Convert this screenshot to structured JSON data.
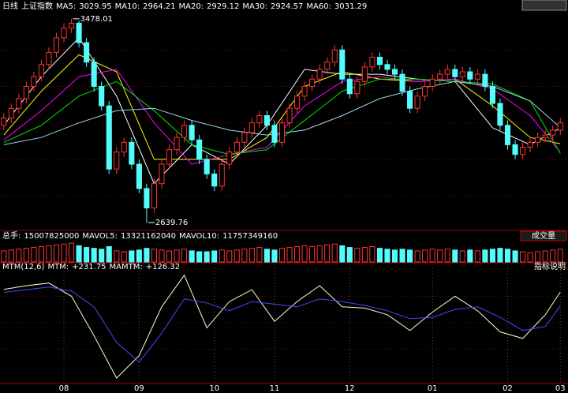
{
  "chart_data": [
    {
      "type": "candlestick",
      "period": "日线",
      "title": "上证指数",
      "open": [
        3040,
        3070,
        3110,
        3150,
        3200,
        3240,
        3290,
        3340,
        3400,
        3440,
        3460,
        3380,
        3300,
        3200,
        3120,
        2860,
        2930,
        2970,
        2880,
        2780,
        2700,
        2800,
        2880,
        2940,
        2990,
        3040,
        2980,
        2900,
        2840,
        2790,
        2880,
        2930,
        2970,
        3010,
        3050,
        3080,
        3040,
        2970,
        3050,
        3110,
        3160,
        3200,
        3230,
        3270,
        3300,
        3350,
        3230,
        3170,
        3220,
        3280,
        3320,
        3290,
        3270,
        3250,
        3180,
        3110,
        3160,
        3200,
        3230,
        3250,
        3270,
        3240,
        3260,
        3230,
        3250,
        3200,
        3130,
        3040,
        2960,
        2920,
        2950,
        2970,
        2990,
        3000,
        3020
      ],
      "high": [
        3090,
        3130,
        3170,
        3220,
        3260,
        3310,
        3360,
        3420,
        3460,
        3478.01,
        3470,
        3400,
        3320,
        3220,
        3140,
        2950,
        2990,
        2990,
        2900,
        2800,
        2820,
        2900,
        2960,
        3010,
        3060,
        3060,
        3000,
        2920,
        2860,
        2900,
        2950,
        2990,
        3030,
        3070,
        3100,
        3100,
        3060,
        3070,
        3130,
        3180,
        3220,
        3250,
        3290,
        3320,
        3370,
        3370,
        3250,
        3240,
        3300,
        3340,
        3340,
        3310,
        3290,
        3270,
        3200,
        3180,
        3220,
        3250,
        3270,
        3290,
        3290,
        3280,
        3280,
        3270,
        3270,
        3220,
        3150,
        3060,
        2980,
        2970,
        2990,
        3010,
        3020,
        3040,
        3070
      ],
      "low": [
        3020,
        3050,
        3090,
        3130,
        3180,
        3220,
        3270,
        3320,
        3380,
        3420,
        3360,
        3280,
        3180,
        3100,
        2840,
        2840,
        2910,
        2860,
        2760,
        2639.76,
        2680,
        2780,
        2860,
        2920,
        2970,
        2960,
        2880,
        2820,
        2770,
        2770,
        2860,
        2910,
        2950,
        2990,
        3030,
        3020,
        2950,
        2950,
        3030,
        3090,
        3140,
        3180,
        3210,
        3250,
        3280,
        3210,
        3150,
        3150,
        3200,
        3260,
        3270,
        3250,
        3230,
        3160,
        3090,
        3090,
        3140,
        3180,
        3210,
        3230,
        3220,
        3220,
        3210,
        3210,
        3180,
        3110,
        3020,
        2940,
        2900,
        2900,
        2930,
        2950,
        2970,
        2980,
        3000
      ],
      "close": [
        3070,
        3110,
        3150,
        3200,
        3240,
        3290,
        3340,
        3400,
        3440,
        3460,
        3380,
        3300,
        3200,
        3120,
        2860,
        2930,
        2970,
        2880,
        2780,
        2700,
        2800,
        2880,
        2940,
        2990,
        3040,
        2980,
        2900,
        2840,
        2790,
        2880,
        2930,
        2970,
        3010,
        3050,
        3080,
        3040,
        2970,
        3050,
        3110,
        3160,
        3200,
        3230,
        3270,
        3300,
        3350,
        3230,
        3170,
        3220,
        3280,
        3320,
        3290,
        3270,
        3250,
        3180,
        3110,
        3160,
        3200,
        3230,
        3250,
        3270,
        3240,
        3260,
        3230,
        3250,
        3200,
        3130,
        3040,
        2960,
        2920,
        2950,
        2970,
        2990,
        3000,
        3020,
        3050
      ],
      "up_color": "#ff3232",
      "down_color": "#54fcfc",
      "xlim": [
        -0.5,
        74.5
      ],
      "ylim": [
        2614,
        3497
      ],
      "yticks": [
        2750,
        2900,
        3050,
        3200,
        3350
      ],
      "grid": true,
      "series": [
        {
          "name": "MA5:",
          "color": "#ffffff",
          "x": [
            0,
            5,
            10,
            15,
            20,
            25,
            30,
            35,
            40,
            45,
            50,
            55,
            60,
            65,
            70,
            74
          ],
          "values": [
            3040,
            3240,
            3400,
            3160,
            2800,
            2960,
            2880,
            3040,
            3270,
            3250,
            3250,
            3230,
            3220,
            3030,
            2960,
            3029.95
          ]
        },
        {
          "name": "MA10:",
          "color": "#ffff00",
          "x": [
            0,
            5,
            10,
            15,
            20,
            25,
            30,
            35,
            40,
            45,
            50,
            55,
            60,
            65,
            70,
            74
          ],
          "values": [
            3000,
            3180,
            3330,
            3260,
            2900,
            2900,
            2900,
            2990,
            3200,
            3260,
            3230,
            3220,
            3230,
            3120,
            2990,
            2964.21
          ]
        },
        {
          "name": "MA20:",
          "color": "#ff00ff",
          "x": [
            0,
            5,
            10,
            15,
            20,
            25,
            30,
            35,
            40,
            45,
            50,
            55,
            60,
            65,
            70,
            74
          ],
          "values": [
            2980,
            3100,
            3240,
            3270,
            3050,
            2880,
            2920,
            2950,
            3120,
            3220,
            3240,
            3220,
            3230,
            3190,
            3080,
            2929.12
          ]
        },
        {
          "name": "MA30:",
          "color": "#00e600",
          "x": [
            0,
            5,
            10,
            15,
            20,
            25,
            30,
            35,
            40,
            45,
            50,
            55,
            60,
            65,
            70,
            74
          ],
          "values": [
            2970,
            3040,
            3160,
            3220,
            3100,
            2960,
            2920,
            2940,
            3060,
            3180,
            3230,
            3230,
            3220,
            3210,
            3140,
            2924.57
          ]
        },
        {
          "name": "MA60:",
          "color": "#9ad7f0",
          "x": [
            0,
            5,
            10,
            15,
            20,
            25,
            30,
            35,
            40,
            45,
            50,
            55,
            60,
            65,
            70,
            74
          ],
          "values": [
            2960,
            2990,
            3050,
            3100,
            3110,
            3060,
            3020,
            3000,
            3020,
            3080,
            3150,
            3190,
            3220,
            3200,
            3140,
            3031.29
          ]
        }
      ]
    },
    {
      "type": "bar",
      "button": "成交量",
      "xlim": [
        -0.5,
        74.5
      ],
      "ylim": [
        0,
        24000000000
      ],
      "series": [
        {
          "name": "总手:",
          "color": "#ffffff",
          "values": [
            13000000000.0,
            14000000000.0,
            15000000000.0,
            16000000000.0,
            17000000000.0,
            18000000000.0,
            19000000000.0,
            20000000000.0,
            21000000000.0,
            22000000000.0,
            19000000000.0,
            17000000000.0,
            16000000000.0,
            15000000000.0,
            18000000000.0,
            13000000000.0,
            12000000000.0,
            13000000000.0,
            14000000000.0,
            16000000000.0,
            15000000000.0,
            14000000000.0,
            13000000000.0,
            14000000000.0,
            15000000000.0,
            13000000000.0,
            12000000000.0,
            12000000000.0,
            13000000000.0,
            14000000000.0,
            13000000000.0,
            14000000000.0,
            15000000000.0,
            16000000000.0,
            17000000000.0,
            15000000000.0,
            14000000000.0,
            16000000000.0,
            17000000000.0,
            18000000000.0,
            19000000000.0,
            18000000000.0,
            19000000000.0,
            20000000000.0,
            21000000000.0,
            19000000000.0,
            17000000000.0,
            16000000000.0,
            17000000000.0,
            18000000000.0,
            16000000000.0,
            15000000000.0,
            14000000000.0,
            15000000000.0,
            14000000000.0,
            13000000000.0,
            14000000000.0,
            15000000000.0,
            14000000000.0,
            15000000000.0,
            14000000000.0,
            13000000000.0,
            14000000000.0,
            13000000000.0,
            14000000000.0,
            15000000000.0,
            16000000000.0,
            15000000000.0,
            13000000000.0,
            12000000000.0,
            11000000000.0,
            12000000000.0,
            13000000000.0,
            14000000000.0,
            15007825000
          ]
        }
      ],
      "averages": [
        {
          "name": "MAVOL5:",
          "color": "#ffffff",
          "value": 13321162040
        },
        {
          "name": "MAVOL10:",
          "color": "#ffffff",
          "value": 11757349160
        }
      ]
    },
    {
      "type": "line",
      "title": "MTM(12,6)",
      "button": "指标说明",
      "xlim": [
        -0.5,
        74.5
      ],
      "ylim": [
        -450,
        400
      ],
      "yticks": [
        -200,
        0,
        200
      ],
      "grid": true,
      "x": [
        0,
        3,
        6,
        9,
        12,
        15,
        18,
        21,
        24,
        27,
        30,
        33,
        36,
        39,
        42,
        45,
        48,
        51,
        54,
        57,
        60,
        63,
        66,
        69,
        72,
        74
      ],
      "xticks": [
        {
          "value": 8,
          "label": "08"
        },
        {
          "value": 18,
          "label": "09"
        },
        {
          "value": 28,
          "label": "10"
        },
        {
          "value": 36,
          "label": "11"
        },
        {
          "value": 46,
          "label": "12"
        },
        {
          "value": 57,
          "label": "01"
        },
        {
          "value": 67,
          "label": "02"
        },
        {
          "value": 74,
          "label": "03"
        }
      ],
      "series": [
        {
          "name": "MTM:",
          "color": "#ffffcc",
          "label": "+231.75",
          "values": [
            252,
            280,
            300,
            200,
            -100,
            -420,
            -250,
            120,
            360,
            -40,
            160,
            250,
            10,
            160,
            280,
            120,
            110,
            60,
            -60,
            80,
            200,
            90,
            -70,
            -120,
            60,
            231.75
          ]
        },
        {
          "name": "MAMTM:",
          "color": "#4848ff",
          "label": "+126.32",
          "values": [
            230,
            250,
            270,
            240,
            120,
            -150,
            -300,
            -80,
            180,
            150,
            90,
            160,
            140,
            120,
            180,
            160,
            130,
            90,
            30,
            40,
            100,
            120,
            40,
            -60,
            -30,
            126.32
          ]
        }
      ]
    }
  ]
}
